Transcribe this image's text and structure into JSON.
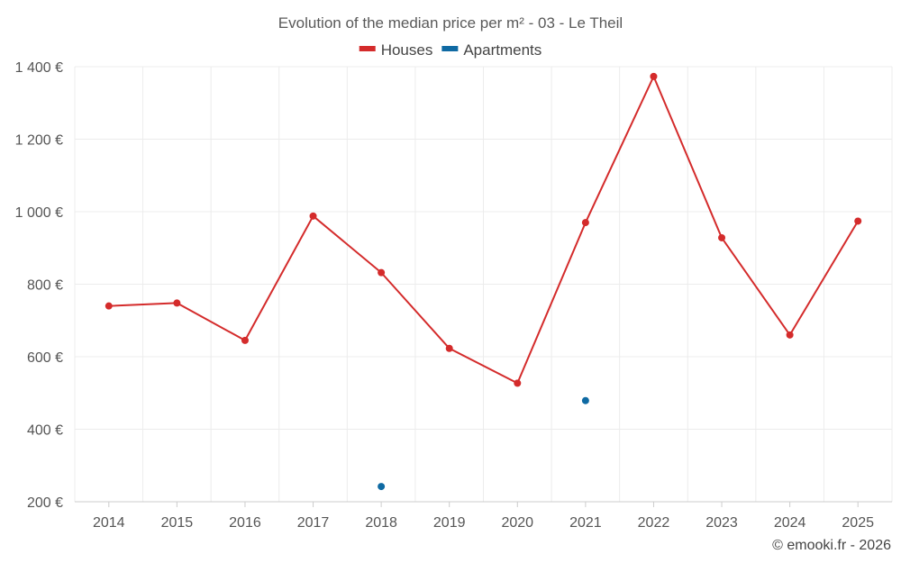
{
  "chart_data": {
    "type": "line",
    "title": "Evolution of the median price per m² - 03 - Le Theil",
    "categories": [
      "2014",
      "2015",
      "2016",
      "2017",
      "2018",
      "2019",
      "2020",
      "2021",
      "2022",
      "2023",
      "2024",
      "2025"
    ],
    "series": [
      {
        "name": "Houses",
        "color": "#d42b2b",
        "values": [
          740,
          748,
          645,
          988,
          832,
          623,
          527,
          970,
          1373,
          928,
          660,
          974
        ]
      },
      {
        "name": "Apartments",
        "color": "#0f6aa3",
        "values": [
          null,
          null,
          null,
          null,
          242,
          null,
          null,
          479,
          null,
          null,
          null,
          null
        ]
      }
    ],
    "y_ticks": [
      200,
      400,
      600,
      800,
      1000,
      1200,
      1400
    ],
    "y_tick_labels": [
      "200 €",
      "400 €",
      "600 €",
      "800 €",
      "1 000 €",
      "1 200 €",
      "1 400 €"
    ],
    "ylim": [
      200,
      1400
    ],
    "xlabel": "",
    "ylabel": "",
    "legend_position": "top-center",
    "grid": true
  },
  "credit": "© emooki.fr - 2026"
}
